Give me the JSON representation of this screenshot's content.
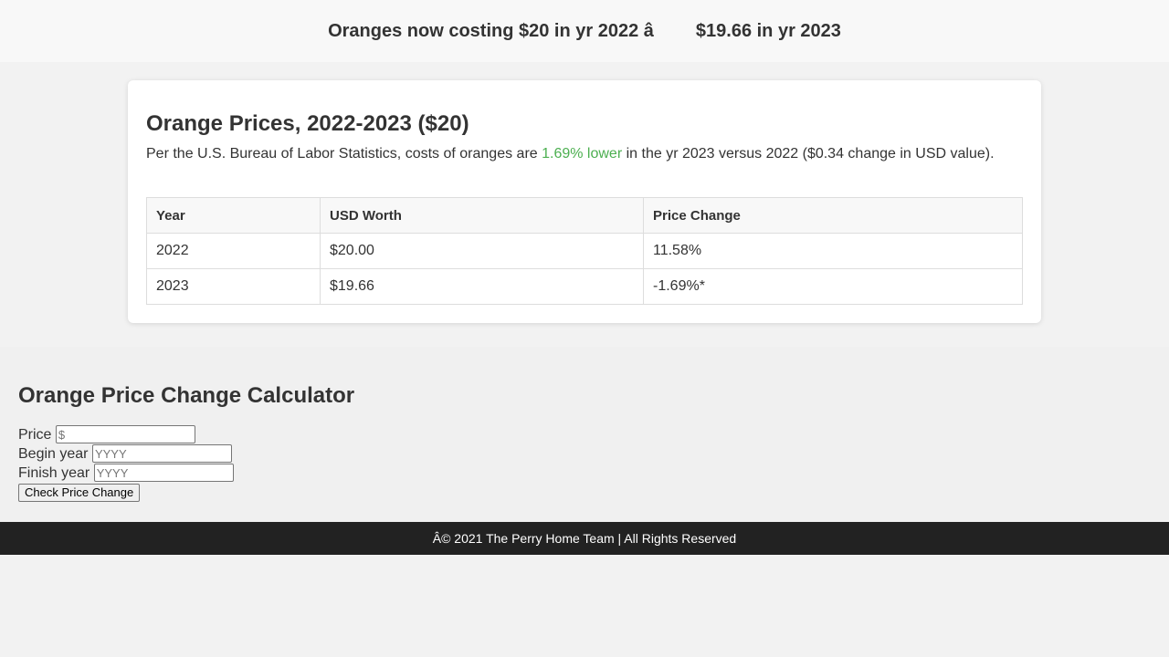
{
  "header": {
    "headline_part1": "Oranges now costing $20 in yr 2022 â",
    "headline_part2": "$19.66 in yr 2023"
  },
  "card": {
    "title": "Orange Prices, 2022-2023 ($20)",
    "description_prefix": "Per the U.S. Bureau of Labor Statistics, costs of oranges are ",
    "description_highlight": "1.69% lower",
    "description_suffix": " in the yr 2023 versus 2022 ($0.34 change in USD value).",
    "highlight_color": "#4caf50",
    "table": {
      "headers": [
        "Year",
        "USD Worth",
        "Price Change"
      ],
      "rows": [
        [
          "2022",
          "$20.00",
          "11.58%"
        ],
        [
          "2023",
          "$19.66",
          "-1.69%*"
        ]
      ]
    }
  },
  "calculator": {
    "title": "Orange Price Change Calculator",
    "price_label": "Price",
    "price_placeholder": "$",
    "begin_label": "Begin year",
    "begin_placeholder": "YYYY",
    "finish_label": "Finish year",
    "finish_placeholder": "YYYY",
    "button_label": "Check Price Change"
  },
  "footer": {
    "text": "Â© 2021 The Perry Home Team | All Rights Reserved"
  }
}
